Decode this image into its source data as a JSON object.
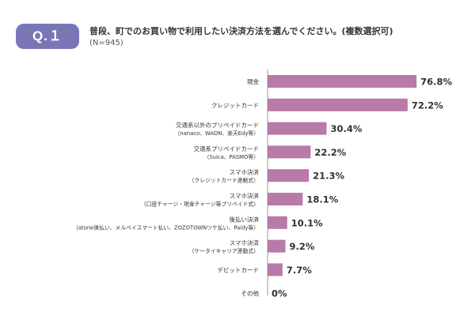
{
  "header": {
    "badge": "Q.１",
    "question": "普段、町でのお買い物で利用したい決済方法を選んでください。(複数選択可)",
    "sample": "(N=945)"
  },
  "chart_data": {
    "type": "bar",
    "orientation": "horizontal",
    "categories": [
      [
        "現金"
      ],
      [
        "クレジットカード"
      ],
      [
        "交通系以外のプリペイドカード",
        "（nanaco、WAON、楽天Edy等）"
      ],
      [
        "交通系プリペイドカード",
        "（Suica、PASMO等）"
      ],
      [
        "スマホ決済",
        "（クレジットカード連動式）"
      ],
      [
        "スマホ決済",
        "（口座チャージ・現金チャージ等プリペイド式）"
      ],
      [
        "後払い決済",
        "（atone後払い、メルペイスマート払い、ZOZOTOWNツケ払い、Paidy等）"
      ],
      [
        "スマホ決済",
        "（ケータイキャリア連動式）"
      ],
      [
        "デビットカード"
      ],
      [
        "その他"
      ]
    ],
    "values": [
      76.8,
      72.2,
      30.4,
      22.2,
      21.3,
      18.1,
      10.1,
      9.2,
      7.7,
      0
    ],
    "value_labels": [
      "76.8%",
      "72.2%",
      "30.4%",
      "22.2%",
      "21.3%",
      "18.1%",
      "10.1%",
      "9.2%",
      "7.7%",
      "0%"
    ],
    "xlim": [
      0,
      80
    ],
    "bar_color": "#b87aa6",
    "axis_color": "#999999",
    "grid": false,
    "legend": "none"
  }
}
